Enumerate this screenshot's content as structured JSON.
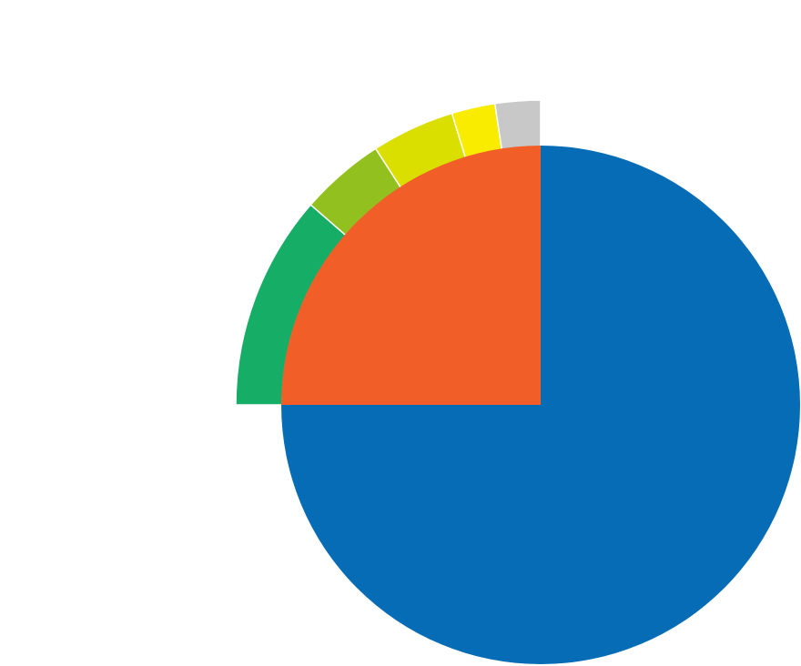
{
  "chart_data": {
    "type": "sunburst",
    "rings": [
      {
        "values": [
          75,
          25
        ],
        "colors": [
          "#066cb5",
          "#f15e28"
        ]
      },
      {
        "values": [
          11.4,
          4.5,
          4.4,
          2.3,
          2.4
        ],
        "colors": [
          "#16ad66",
          "#92c11f",
          "#dadf00",
          "#f9ec00",
          "#c8c8c8"
        ]
      }
    ]
  }
}
